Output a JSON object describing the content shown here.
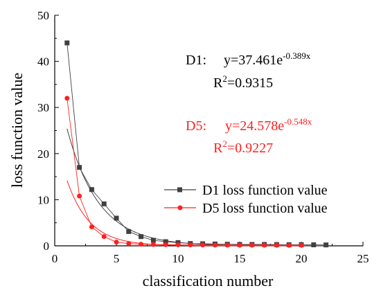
{
  "chart_data": {
    "type": "scatter",
    "title": "",
    "xlabel": "classification number",
    "ylabel": "loss function value",
    "xlim": [
      0,
      25
    ],
    "ylim": [
      0,
      50
    ],
    "xticks": [
      0,
      5,
      10,
      15,
      20,
      25
    ],
    "yticks": [
      0,
      10,
      20,
      30,
      40,
      50
    ],
    "grid": false,
    "legend_position": "right-middle",
    "series": [
      {
        "name": "D1 loss function value",
        "color": "#404040",
        "marker": "square",
        "x": [
          1,
          2,
          3,
          4,
          5,
          6,
          7,
          8,
          9,
          10,
          11,
          12,
          13,
          14,
          15,
          16,
          17,
          18,
          19,
          20,
          21,
          22
        ],
        "y": [
          44.0,
          17.0,
          12.2,
          9.1,
          6.0,
          3.1,
          2.0,
          1.2,
          0.9,
          0.7,
          0.5,
          0.45,
          0.4,
          0.35,
          0.3,
          0.3,
          0.3,
          0.28,
          0.25,
          0.25,
          0.22,
          0.2
        ]
      },
      {
        "name": "D5 loss function value",
        "color": "#ff2020",
        "marker": "circle",
        "x": [
          1,
          2,
          3,
          4,
          5,
          6,
          7,
          8,
          9,
          10,
          11,
          12,
          13,
          14,
          15,
          16,
          17,
          18,
          19,
          20
        ],
        "y": [
          32.0,
          10.8,
          4.1,
          2.0,
          0.8,
          0.5,
          0.35,
          0.3,
          0.25,
          0.22,
          0.2,
          0.18,
          0.17,
          0.16,
          0.15,
          0.15,
          0.14,
          0.13,
          0.12,
          0.12
        ]
      }
    ],
    "fits": [
      {
        "series": "D1",
        "a": 37.461,
        "b": -0.389,
        "x_range": [
          1,
          22
        ],
        "color": "#404040"
      },
      {
        "series": "D5",
        "a": 24.578,
        "b": -0.548,
        "x_range": [
          1,
          20
        ],
        "color": "#ff2020"
      }
    ],
    "annotations": {
      "d1_label": "D1:",
      "d1_eq_base": "y=37.461e",
      "d1_eq_exp": "-0.389x",
      "d1_r2_base": "R",
      "d1_r2_sup": "2",
      "d1_r2_val": "=0.9315",
      "d5_label": "D5:",
      "d5_eq_base": "y=24.578e",
      "d5_eq_exp": "-0.548x",
      "d5_r2_base": "R",
      "d5_r2_sup": "2",
      "d5_r2_val": "=0.9227"
    }
  }
}
